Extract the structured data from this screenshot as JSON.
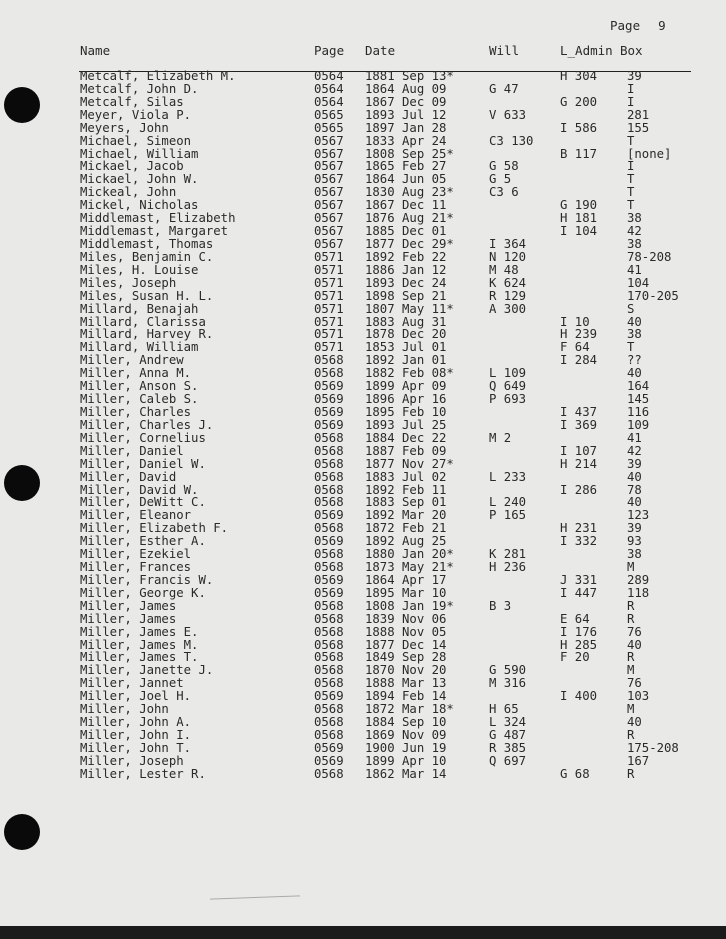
{
  "page_label": "Page",
  "page_number": "9",
  "columns": [
    "Name",
    "Page",
    "Date",
    "Will",
    "L_Admin",
    "Box"
  ],
  "rows": [
    [
      "Metcalf, Elizabeth M.",
      "0564",
      "1881 Sep 13*",
      "",
      "H 304",
      "39"
    ],
    [
      "Metcalf, John D.",
      "0564",
      "1864 Aug 09",
      "G 47",
      "",
      "I"
    ],
    [
      "Metcalf, Silas",
      "0564",
      "1867 Dec 09",
      "",
      "G 200",
      "I"
    ],
    [
      "Meyer, Viola P.",
      "0565",
      "1893 Jul 12",
      "V 633",
      "",
      "281"
    ],
    [
      "Meyers, John",
      "0565",
      "1897 Jan 28",
      "",
      "I 586",
      "155"
    ],
    [
      "Michael, Simeon",
      "0567",
      "1833 Apr 24",
      "C3 130",
      "",
      "T"
    ],
    [
      "Michael, William",
      "0567",
      "1808 Sep 25*",
      "",
      "B 117",
      "[none]"
    ],
    [
      "Mickael, Jacob",
      "0567",
      "1865 Feb 27",
      "G 58",
      "",
      "I"
    ],
    [
      "Mickael, John W.",
      "0567",
      "1864 Jun 05",
      "G 5",
      "",
      "T"
    ],
    [
      "Mickeal, John",
      "0567",
      "1830 Aug 23*",
      "C3 6",
      "",
      "T"
    ],
    [
      "Mickel, Nicholas",
      "0567",
      "1867 Dec 11",
      "",
      "G 190",
      "T"
    ],
    [
      "Middlemast, Elizabeth",
      "0567",
      "1876 Aug 21*",
      "",
      "H 181",
      "38"
    ],
    [
      "Middlemast, Margaret",
      "0567",
      "1885 Dec 01",
      "",
      "I 104",
      "42"
    ],
    [
      "Middlemast, Thomas",
      "0567",
      "1877 Dec 29*",
      "I 364",
      "",
      "38"
    ],
    [
      "Miles, Benjamin C.",
      "0571",
      "1892 Feb 22",
      "N 120",
      "",
      "78-208"
    ],
    [
      "Miles, H. Louise",
      "0571",
      "1886 Jan 12",
      "M 48",
      "",
      "41"
    ],
    [
      "Miles, Joseph",
      "0571",
      "1893 Dec 24",
      "K 624",
      "",
      "104"
    ],
    [
      "Miles, Susan H. L.",
      "0571",
      "1898 Sep 21",
      "R 129",
      "",
      "170-205"
    ],
    [
      "Millard, Benajah",
      "0571",
      "1807 May 11*",
      "A 300",
      "",
      "S"
    ],
    [
      "Millard, Clarissa",
      "0571",
      "1883 Aug 31",
      "",
      "I 10",
      "40"
    ],
    [
      "Millard, Harvey R.",
      "0571",
      "1878 Dec 20",
      "",
      "H 239",
      "38"
    ],
    [
      "Millard, William",
      "0571",
      "1853 Jul 01",
      "",
      "F 64",
      "T"
    ],
    [
      "Miller, Andrew",
      "0568",
      "1892 Jan 01",
      "",
      "I 284",
      "??"
    ],
    [
      "Miller, Anna M.",
      "0568",
      "1882 Feb 08*",
      "L 109",
      "",
      "40"
    ],
    [
      "Miller, Anson S.",
      "0569",
      "1899 Apr 09",
      "Q 649",
      "",
      "164"
    ],
    [
      "Miller, Caleb S.",
      "0569",
      "1896 Apr 16",
      "P 693",
      "",
      "145"
    ],
    [
      "Miller, Charles",
      "0569",
      "1895 Feb 10",
      "",
      "I 437",
      "116"
    ],
    [
      "Miller, Charles J.",
      "0569",
      "1893 Jul 25",
      "",
      "I 369",
      "109"
    ],
    [
      "Miller, Cornelius",
      "0568",
      "1884 Dec 22",
      "M 2",
      "",
      "41"
    ],
    [
      "Miller, Daniel",
      "0568",
      "1887 Feb 09",
      "",
      "I 107",
      "42"
    ],
    [
      "Miller, Daniel W.",
      "0568",
      "1877 Nov 27*",
      "",
      "H 214",
      "39"
    ],
    [
      "Miller, David",
      "0568",
      "1883 Jul 02",
      "L 233",
      "",
      "40"
    ],
    [
      "Miller, David W.",
      "0568",
      "1892 Feb 11",
      "",
      "I 286",
      "78"
    ],
    [
      "Miller, DeWitt C.",
      "0568",
      "1883 Sep 01",
      "L 240",
      "",
      "40"
    ],
    [
      "Miller, Eleanor",
      "0569",
      "1892 Mar 20",
      "P 165",
      "",
      "123"
    ],
    [
      "Miller, Elizabeth F.",
      "0568",
      "1872 Feb 21",
      "",
      "H 231",
      "39"
    ],
    [
      "Miller, Esther A.",
      "0569",
      "1892 Aug 25",
      "",
      "I 332",
      "93"
    ],
    [
      "Miller, Ezekiel",
      "0568",
      "1880 Jan 20*",
      "K 281",
      "",
      "38"
    ],
    [
      "Miller, Frances",
      "0568",
      "1873 May 21*",
      "H 236",
      "",
      "M"
    ],
    [
      "Miller, Francis W.",
      "0569",
      "1864 Apr 17",
      "",
      "J 331",
      "289"
    ],
    [
      "Miller, George K.",
      "0569",
      "1895 Mar 10",
      "",
      "I 447",
      "118"
    ],
    [
      "Miller, James",
      "0568",
      "1808 Jan 19*",
      "B 3",
      "",
      "R"
    ],
    [
      "Miller, James",
      "0568",
      "1839 Nov 06",
      "",
      "E 64",
      "R"
    ],
    [
      "Miller, James E.",
      "0568",
      "1888 Nov 05",
      "",
      "I 176",
      "76"
    ],
    [
      "Miller, James M.",
      "0568",
      "1877 Dec 14",
      "",
      "H 285",
      "40"
    ],
    [
      "Miller, James T.",
      "0568",
      "1849 Sep 28",
      "",
      "F 20",
      "R"
    ],
    [
      "Miller, Janette J.",
      "0568",
      "1870 Nov 20",
      "G 590",
      "",
      "M"
    ],
    [
      "Miller, Jannet",
      "0568",
      "1888 Mar 13",
      "M 316",
      "",
      "76"
    ],
    [
      "Miller, Joel H.",
      "0569",
      "1894 Feb 14",
      "",
      "I 400",
      "103"
    ],
    [
      "Miller, John",
      "0568",
      "1872 Mar 18*",
      "H 65",
      "",
      "M"
    ],
    [
      "Miller, John A.",
      "0568",
      "1884 Sep 10",
      "L 324",
      "",
      "40"
    ],
    [
      "Miller, John I.",
      "0568",
      "1869 Nov 09",
      "G 487",
      "",
      "R"
    ],
    [
      "Miller, John T.",
      "0569",
      "1900 Jun 19",
      "R 385",
      "",
      "175-208"
    ],
    [
      "Miller, Joseph",
      "0569",
      "1899 Apr 10",
      "Q 697",
      "",
      "167"
    ],
    [
      "Miller, Lester R.",
      "0568",
      "1862 Mar 14",
      "",
      "G 68",
      "R"
    ]
  ]
}
